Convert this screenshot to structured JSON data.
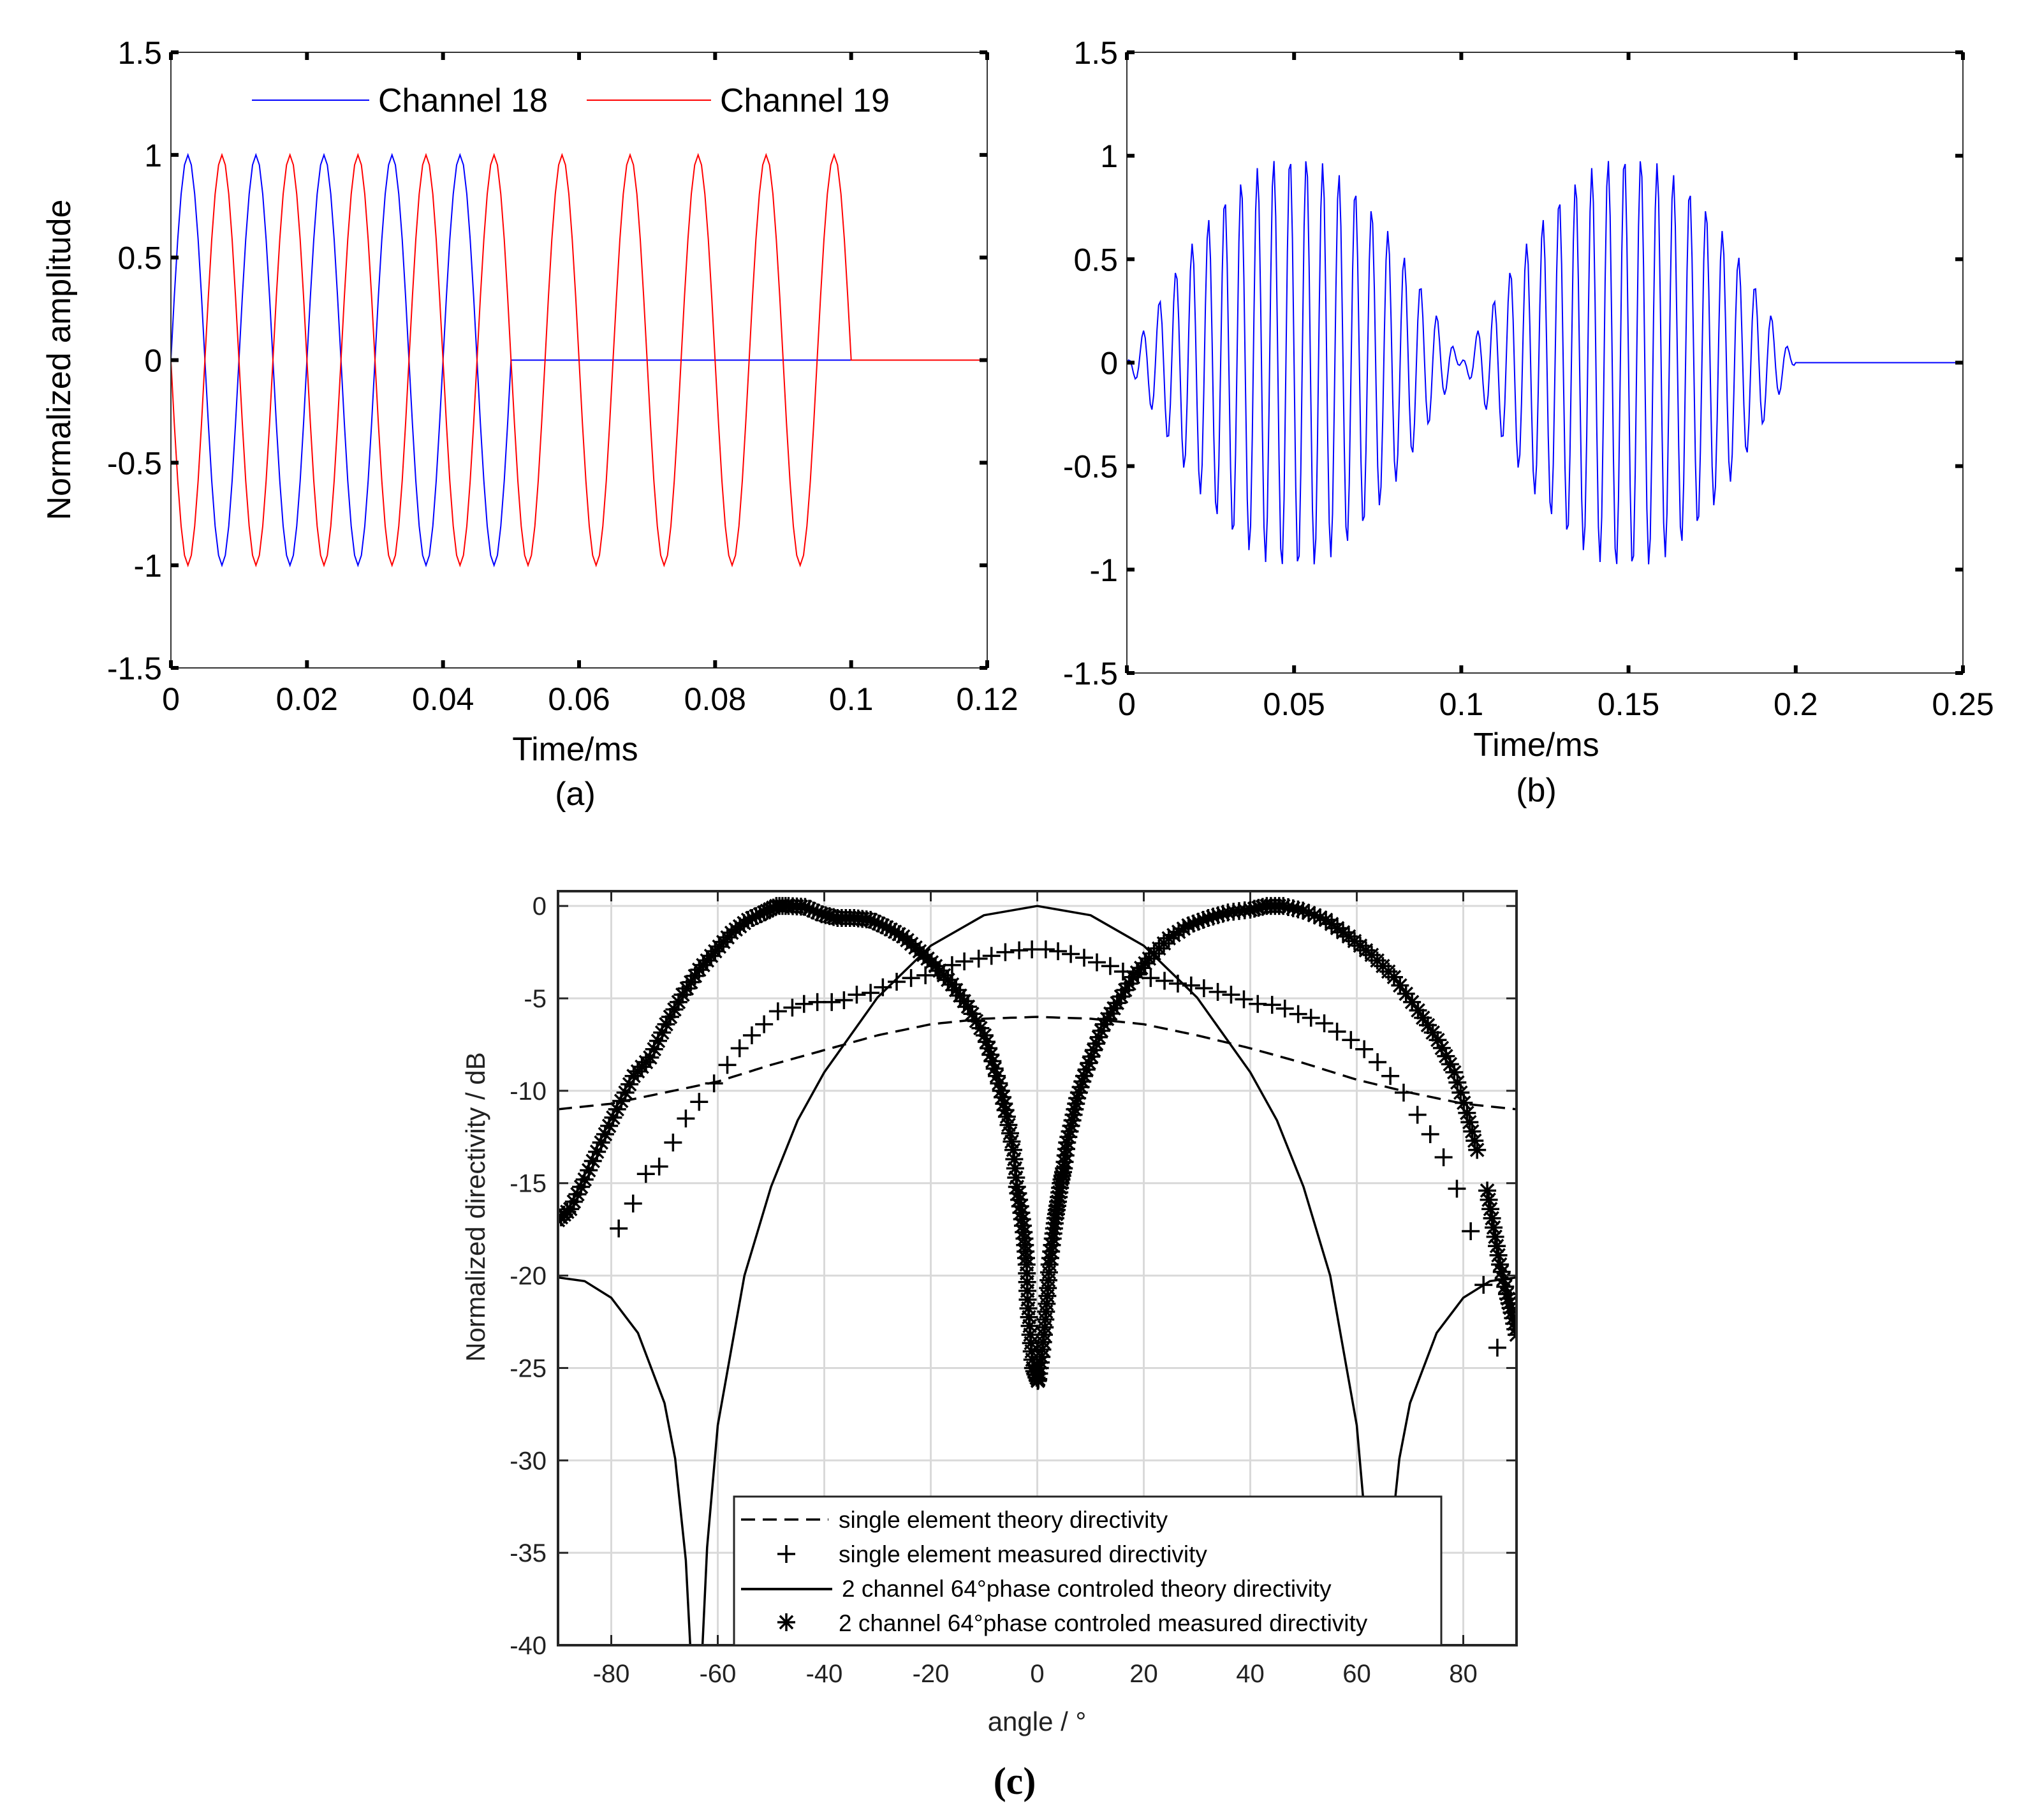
{
  "panel_labels": {
    "a": "(a)",
    "b": "(b)",
    "c": "(c)"
  },
  "chart_data": [
    {
      "id": "a",
      "type": "line",
      "title": "",
      "xlabel": "Time/ms",
      "ylabel": "Normalized amplitude",
      "xlim": [
        0,
        0.12
      ],
      "ylim": [
        -1.5,
        1.5
      ],
      "grid": false,
      "xticks": [
        0,
        0.02,
        0.04,
        0.06,
        0.08,
        0.1,
        0.12
      ],
      "xtick_labels": [
        "0",
        "0.02",
        "0.04",
        "0.06",
        "0.08",
        "0.1",
        "0.12"
      ],
      "yticks": [
        1.5,
        1,
        0.5,
        0,
        -0.5,
        -1,
        -1.5
      ],
      "ytick_labels": [
        "1.5",
        "1",
        "0.5",
        "0",
        "-0.5",
        "-1",
        "-1.5"
      ],
      "legend_position": "top",
      "series": [
        {
          "name": "Channel 18",
          "color": "#0000ff",
          "waveform": {
            "components": [
              {
                "frequency_kHz": 100,
                "amplitude": 1,
                "phase_deg": 0
              }
            ],
            "start_ms": 0,
            "end_ms": 0.05,
            "sample_step_ms": 0.0005
          }
        },
        {
          "name": "Channel 19",
          "color": "#ff0000",
          "waveform": {
            "components": [
              {
                "frequency_kHz": 100,
                "amplitude": 1,
                "phase_deg": 180
              }
            ],
            "start_ms": 0,
            "end_ms": 0.1,
            "sample_step_ms": 0.0005
          }
        }
      ]
    },
    {
      "id": "b",
      "type": "line",
      "title": "",
      "xlabel": "Time/ms",
      "ylabel": "",
      "xlim": [
        0,
        0.25
      ],
      "ylim": [
        -1.5,
        1.5
      ],
      "grid": false,
      "xticks": [
        0,
        0.05,
        0.1,
        0.15,
        0.2,
        0.25
      ],
      "xtick_labels": [
        "0",
        "0.05",
        "0.1",
        "0.15",
        "0.2",
        "0.25"
      ],
      "yticks": [
        1.5,
        1,
        0.5,
        0,
        -0.5,
        -1,
        -1.5
      ],
      "ytick_labels": [
        "1.5",
        "1",
        "0.5",
        "0",
        "-0.5",
        "-1",
        "-1.5"
      ],
      "series": [
        {
          "color": "#0000ff",
          "waveform": {
            "components": [
              {
                "frequency_kHz": 210,
                "amplitude": 0.5,
                "phase_deg": 0
              },
              {
                "frequency_kHz": 200,
                "amplitude": 0.5,
                "phase_deg": 180
              }
            ],
            "start_ms": 0,
            "end_ms": 0.2,
            "sample_step_ms": 0.0005
          }
        }
      ]
    },
    {
      "id": "c",
      "type": "line",
      "title": "",
      "xlabel": "angle / °",
      "ylabel": "Normalized directivity / dB",
      "xlim": [
        -90,
        90
      ],
      "ylim": [
        -40,
        0.8
      ],
      "grid": true,
      "xticks": [
        -80,
        -60,
        -40,
        -20,
        0,
        20,
        40,
        60,
        80
      ],
      "xtick_labels": [
        "-80",
        "-60",
        "-40",
        "-20",
        "0",
        "20",
        "40",
        "60",
        "80"
      ],
      "yticks": [
        0,
        -5,
        -10,
        -15,
        -20,
        -25,
        -30,
        -35,
        -40
      ],
      "ytick_labels": [
        "0",
        "-5",
        "-10",
        "-15",
        "-20",
        "-25",
        "-30",
        "-35",
        "-40"
      ],
      "legend_position": "bottom-center",
      "series": [
        {
          "name": "single element theory directivity",
          "style": "dashed",
          "x": [
            -90,
            -80,
            -70,
            -60,
            -50,
            -40,
            -30,
            -20,
            -10,
            0,
            10,
            20,
            30,
            40,
            50,
            60,
            70,
            80,
            90
          ],
          "y": [
            -11,
            -10.7,
            -10.1,
            -9.5,
            -8.6,
            -7.8,
            -7.0,
            -6.4,
            -6.1,
            -6.0,
            -6.1,
            -6.4,
            -7.0,
            -7.7,
            -8.5,
            -9.4,
            -10.1,
            -10.7,
            -11
          ]
        },
        {
          "name": "single element measured directivity",
          "style": "plus",
          "x": [
            -78.6,
            -75.9,
            -73.5,
            -71,
            -68.4,
            -66,
            -63.5,
            -60.7,
            -58.2,
            -55.9,
            -53.6,
            -51.3,
            -48.7,
            -46,
            -43.8,
            -41.3,
            -38.6,
            -36.3,
            -33.9,
            -31.3,
            -29,
            -26.4,
            -23.7,
            -21,
            -18.7,
            -16,
            -13.7,
            -11,
            -8.6,
            -6,
            -3.4,
            -1,
            1.6,
            3.9,
            6.3,
            8.8,
            11.2,
            13.7,
            16.1,
            18.9,
            21.3,
            23.9,
            26.4,
            28.9,
            31.3,
            33.9,
            36.4,
            38.8,
            41.4,
            44.1,
            46.5,
            49,
            51.4,
            53.9,
            56.3,
            58.9,
            61.4,
            63.9,
            66.3,
            68.8,
            71.4,
            73.8,
            76.3,
            78.8,
            81.4,
            83.8,
            86.4
          ],
          "y": [
            -17.45,
            -16.1,
            -14.5,
            -14.1,
            -12.8,
            -11.5,
            -10.6,
            -9.6,
            -8.6,
            -7.7,
            -7.0,
            -6.4,
            -5.7,
            -5.5,
            -5.3,
            -5.2,
            -5.2,
            -5.1,
            -4.8,
            -4.7,
            -4.4,
            -4.1,
            -3.9,
            -3.75,
            -3.5,
            -3.2,
            -3.0,
            -2.85,
            -2.7,
            -2.5,
            -2.4,
            -2.35,
            -2.35,
            -2.45,
            -2.6,
            -2.8,
            -3.05,
            -3.25,
            -3.55,
            -3.7,
            -3.9,
            -4.05,
            -4.2,
            -4.3,
            -4.45,
            -4.65,
            -4.8,
            -5.05,
            -5.3,
            -5.35,
            -5.55,
            -5.85,
            -6.05,
            -6.35,
            -6.8,
            -7.25,
            -7.75,
            -8.45,
            -9.2,
            -10.1,
            -11.3,
            -12.35,
            -13.6,
            -15.3,
            -17.6,
            -20.5,
            -23.9
          ]
        },
        {
          "name": "2 channel 64°phase controled theory directivity",
          "style": "solid",
          "x": [
            -90,
            -85,
            -80,
            -75,
            -70,
            -68,
            -66,
            -65,
            -64,
            -63,
            -62,
            -60,
            -55,
            -50,
            -45,
            -40,
            -30,
            -20,
            -10,
            0,
            10,
            20,
            30,
            40,
            45,
            50,
            55,
            60,
            62,
            63,
            64,
            65,
            66,
            68,
            70,
            75,
            80,
            85,
            90
          ],
          "y": [
            -20.1,
            -20.3,
            -21.2,
            -23.1,
            -26.9,
            -29.9,
            -35.4,
            -41.2,
            -60,
            -40.8,
            -34.7,
            -28.1,
            -20,
            -15.2,
            -11.6,
            -9.0,
            -4.95,
            -2.15,
            -0.5,
            0,
            -0.5,
            -2.15,
            -4.95,
            -9.0,
            -11.6,
            -15.2,
            -20,
            -28.1,
            -34.7,
            -40.8,
            -60,
            -41.2,
            -35.4,
            -29.9,
            -26.9,
            -23.1,
            -21.2,
            -20.3,
            -20.1
          ]
        },
        {
          "name": "2 channel 64°phase controled measured directivity",
          "style": "star",
          "x": [
            -90,
            -87.7,
            -85,
            -81.9,
            -78.9,
            -75.8,
            -72.7,
            -69.7,
            -66.6,
            -63.5,
            -60.5,
            -57.4,
            -54.3,
            -51.3,
            -49,
            -46.7,
            -43.6,
            -40.5,
            -37.5,
            -34.4,
            -31.3,
            -28.3,
            -25.2,
            -22.1,
            -19.1,
            -16,
            -13,
            -9.9,
            -8.4,
            -6.8,
            -5.7,
            -4.5,
            -3.8,
            -3,
            -2.4,
            -2,
            -1.8,
            -1.3,
            -0.8,
            0.1,
            0.2,
            0.8,
            1.4,
            1.9,
            2.3,
            2.9,
            3.4,
            3.9,
            4.4,
            5,
            5.6,
            6.6,
            7.5,
            8.8,
            10.6,
            12.5,
            15,
            18,
            21,
            24.7,
            28.4,
            32.1,
            35.8,
            40,
            43.1,
            46.2,
            49.9,
            54.2,
            58.5,
            62.8,
            67,
            71.5,
            75.2,
            78.3,
            80.7,
            82.6,
            84.5,
            85.7,
            86.9,
            88.2,
            89.1,
            90
          ],
          "y": [
            -17,
            -16.4,
            -14.8,
            -12.8,
            -11,
            -9.2,
            -8.2,
            -6.4,
            -4.8,
            -3.45,
            -2.45,
            -1.45,
            -0.75,
            -0.35,
            0,
            0,
            -0.05,
            -0.45,
            -0.65,
            -0.65,
            -0.75,
            -1.15,
            -1.65,
            -2.45,
            -3.25,
            -4.25,
            -5.45,
            -7.0,
            -8.4,
            -10.0,
            -11.4,
            -13.2,
            -15.2,
            -16.6,
            -18,
            -19.4,
            -21.3,
            -23.2,
            -25,
            -25.7,
            -25.6,
            -24.4,
            -22.8,
            -21.1,
            -19.4,
            -18,
            -16.9,
            -16,
            -15,
            -14.2,
            -12.8,
            -11.6,
            -10.4,
            -9.2,
            -7.8,
            -6.4,
            -5.25,
            -3.85,
            -2.85,
            -1.75,
            -1.05,
            -0.65,
            -0.35,
            -0.2,
            0,
            0,
            -0.25,
            -0.75,
            -1.65,
            -2.65,
            -3.85,
            -5.65,
            -7.25,
            -9.0,
            -11.2,
            -13.2,
            -15.4,
            -17.4,
            -19.4,
            -21,
            -22,
            -23.2
          ]
        }
      ]
    }
  ]
}
